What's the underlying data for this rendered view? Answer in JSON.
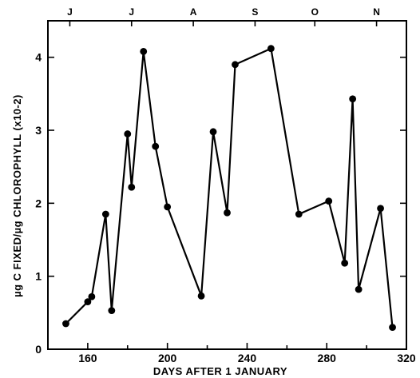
{
  "chart_data": {
    "type": "line",
    "xlabel": "DAYS AFTER 1 JANUARY",
    "ylabel": "µg C FIXED/µg CHLOROPHYLL (x10-2)",
    "xlim": [
      140,
      320
    ],
    "ylim": [
      0,
      4.5
    ],
    "x_ticks": [
      160,
      200,
      240,
      280,
      320
    ],
    "y_ticks": [
      0,
      1,
      2,
      3,
      4
    ],
    "top_axis_labels": [
      {
        "label": "J",
        "x": 151
      },
      {
        "label": "J",
        "x": 182
      },
      {
        "label": "A",
        "x": 213
      },
      {
        "label": "S",
        "x": 244
      },
      {
        "label": "O",
        "x": 274
      },
      {
        "label": "N",
        "x": 305
      }
    ],
    "series": [
      {
        "x": [
          149,
          160,
          162,
          169,
          172,
          180,
          182,
          188,
          194,
          200,
          217,
          223,
          230,
          234,
          252,
          266,
          281,
          289,
          293,
          296,
          307,
          313
        ],
        "y": [
          0.35,
          0.65,
          0.72,
          1.85,
          0.53,
          2.95,
          2.22,
          4.08,
          2.78,
          1.95,
          0.73,
          2.98,
          1.87,
          3.9,
          4.12,
          1.85,
          2.03,
          1.18,
          3.43,
          0.82,
          1.93,
          0.3
        ]
      }
    ],
    "grid": false,
    "legend": "none"
  }
}
